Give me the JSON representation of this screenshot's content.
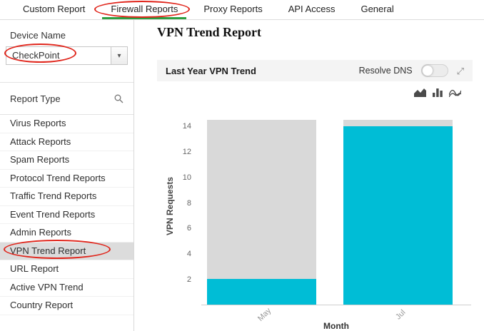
{
  "tabs": {
    "items": [
      {
        "label": "Custom Report",
        "active": false
      },
      {
        "label": "Firewall Reports",
        "active": true
      },
      {
        "label": "Proxy Reports",
        "active": false
      },
      {
        "label": "API Access",
        "active": false
      },
      {
        "label": "General",
        "active": false
      }
    ]
  },
  "sidebar": {
    "device_name_label": "Device Name",
    "device_select": {
      "value": "CheckPoint"
    },
    "report_type_label": "Report Type",
    "items": [
      {
        "label": "Virus Reports",
        "selected": false
      },
      {
        "label": "Attack Reports",
        "selected": false
      },
      {
        "label": "Spam Reports",
        "selected": false
      },
      {
        "label": "Protocol Trend Reports",
        "selected": false
      },
      {
        "label": "Traffic Trend Reports",
        "selected": false
      },
      {
        "label": "Event Trend Reports",
        "selected": false
      },
      {
        "label": "Admin Reports",
        "selected": false
      },
      {
        "label": "VPN Trend Report",
        "selected": true
      },
      {
        "label": "URL Report",
        "selected": false
      },
      {
        "label": "Active VPN Trend",
        "selected": false
      },
      {
        "label": "Country Report",
        "selected": false
      }
    ]
  },
  "main": {
    "page_title": "VPN Trend Report",
    "panel_title": "Last Year VPN Trend",
    "resolve_dns_label": "Resolve DNS",
    "resolve_dns_on": false
  },
  "icons": {
    "dropdown_caret": "▾",
    "expand": "⤢",
    "search": "magnifier-svg",
    "chart_type_area": "area-chart-svg",
    "chart_type_column": "column-chart-svg",
    "chart_type_spline": "spline-chart-svg"
  },
  "colors": {
    "accent_green": "#2e9e41",
    "bar_fill": "#00bdd6",
    "bar_background": "#d9d9d9",
    "annotation_red": "#e0251b",
    "selected_row_bg": "#dcdcdc",
    "panel_header_bg": "#f4f4f4"
  },
  "chart_data": {
    "type": "bar",
    "title": "Last Year VPN Trend",
    "xlabel": "Month",
    "ylabel": "VPN Requests",
    "categories": [
      "May",
      "Jul"
    ],
    "series": [
      {
        "name": "VPN Requests",
        "values": [
          2,
          14
        ],
        "color": "#00bdd6"
      },
      {
        "name": "plot-range-background",
        "values": [
          14.5,
          14.5
        ],
        "color": "#d9d9d9"
      }
    ],
    "ylim": [
      0,
      14.5
    ],
    "yticks": [
      2,
      4,
      6,
      8,
      10,
      12,
      14
    ],
    "grid": false,
    "legend": "none",
    "x_tick_rotation": -45
  }
}
